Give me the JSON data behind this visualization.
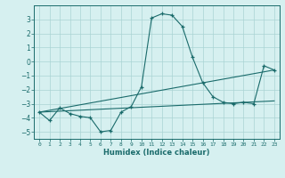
{
  "xlabel": "Humidex (Indice chaleur)",
  "ylabel": "",
  "background_color": "#d6f0f0",
  "line_color": "#1a6b6b",
  "grid_color": "#aad4d4",
  "xlim": [
    -0.5,
    23.5
  ],
  "ylim": [
    -5.5,
    4.0
  ],
  "xticks": [
    0,
    1,
    2,
    3,
    4,
    5,
    6,
    7,
    8,
    9,
    10,
    11,
    12,
    13,
    14,
    15,
    16,
    17,
    18,
    19,
    20,
    21,
    22,
    23
  ],
  "yticks": [
    -5,
    -4,
    -3,
    -2,
    -1,
    0,
    1,
    2,
    3
  ],
  "series1_x": [
    0,
    1,
    2,
    3,
    4,
    5,
    6,
    7,
    8,
    9,
    10,
    11,
    12,
    13,
    14,
    15,
    16,
    17,
    18,
    19,
    20,
    21,
    22,
    23
  ],
  "series1_y": [
    -3.6,
    -4.2,
    -3.3,
    -3.7,
    -3.9,
    -4.0,
    -5.0,
    -4.9,
    -3.6,
    -3.2,
    -1.8,
    3.1,
    3.4,
    3.3,
    2.5,
    0.3,
    -1.5,
    -2.5,
    -2.9,
    -3.0,
    -2.9,
    -3.0,
    -0.3,
    -0.6
  ],
  "series2_x": [
    0,
    23
  ],
  "series2_y": [
    -3.6,
    -0.6
  ],
  "series3_x": [
    0,
    23
  ],
  "series3_y": [
    -3.6,
    -2.8
  ]
}
